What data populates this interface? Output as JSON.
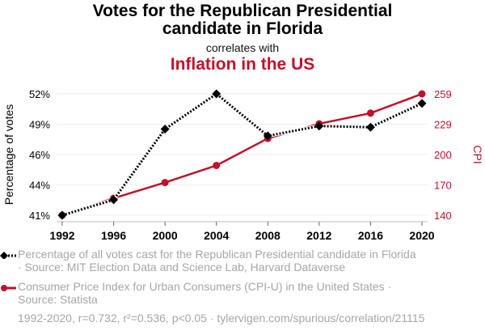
{
  "header": {
    "title_line1": "Votes for the Republican Presidential",
    "title_line2": "candidate in Florida",
    "correlates": "correlates with",
    "title2": "Inflation in the US"
  },
  "colors": {
    "series1": "#000000",
    "series2": "#C0122B",
    "grid": "#eeeeee",
    "axis": "#bbbbbb",
    "muted": "#a6a6a6"
  },
  "chart_data": {
    "type": "line",
    "title": "Votes for the Republican Presidential candidate in Florida correlates with Inflation in the US",
    "x": [
      1992,
      1996,
      2000,
      2004,
      2008,
      2012,
      2016,
      2020
    ],
    "xticks": [
      "1992",
      "1996",
      "2000",
      "2004",
      "2008",
      "2012",
      "2016",
      "2020"
    ],
    "xlim": [
      1992,
      2020
    ],
    "grid": true,
    "series": [
      {
        "name": "Percentage of all votes cast for the Republican Presidential candidate in Florida",
        "axis": "left",
        "style": "dotted-line-diamond",
        "values": [
          40.89,
          42.32,
          48.85,
          52.1,
          48.22,
          49.13,
          49.02,
          51.22
        ]
      },
      {
        "name": "Consumer Price Index for Urban Consumers (CPI-U) in the United States",
        "axis": "right",
        "style": "solid-line-circle",
        "values": [
          140.3,
          156.9,
          172.2,
          188.9,
          215.3,
          229.6,
          240.0,
          258.8
        ]
      }
    ],
    "yaxis_left": {
      "label": "Percentage of votes",
      "ylim": [
        40.89,
        52.1
      ],
      "ticks": [
        40.89,
        43.69,
        46.5,
        49.3,
        52.1
      ],
      "tick_labels": [
        "41%",
        "44%",
        "46%",
        "49%",
        "52%"
      ]
    },
    "yaxis_right": {
      "label": "CPI",
      "ylim": [
        140.3,
        258.8
      ],
      "ticks": [
        140.3,
        169.9,
        199.6,
        229.2,
        258.8
      ],
      "tick_labels": [
        "140",
        "170",
        "200",
        "229",
        "259"
      ]
    }
  },
  "legend": {
    "series1_line1": "Percentage of all votes cast for the Republican Presidential candidate in Florida",
    "series1_line2": "· Source: MIT Election Data and Science Lab, Harvard Dataverse",
    "series2_line1": "Consumer Price Index for Urban Consumers (CPI-U) in the United States ·",
    "series2_line2": "Source: Statista"
  },
  "footer": "1992-2020, r=0.732, r²=0.536, p<0.05 · tylervigen.com/spurious/correlation/21115"
}
